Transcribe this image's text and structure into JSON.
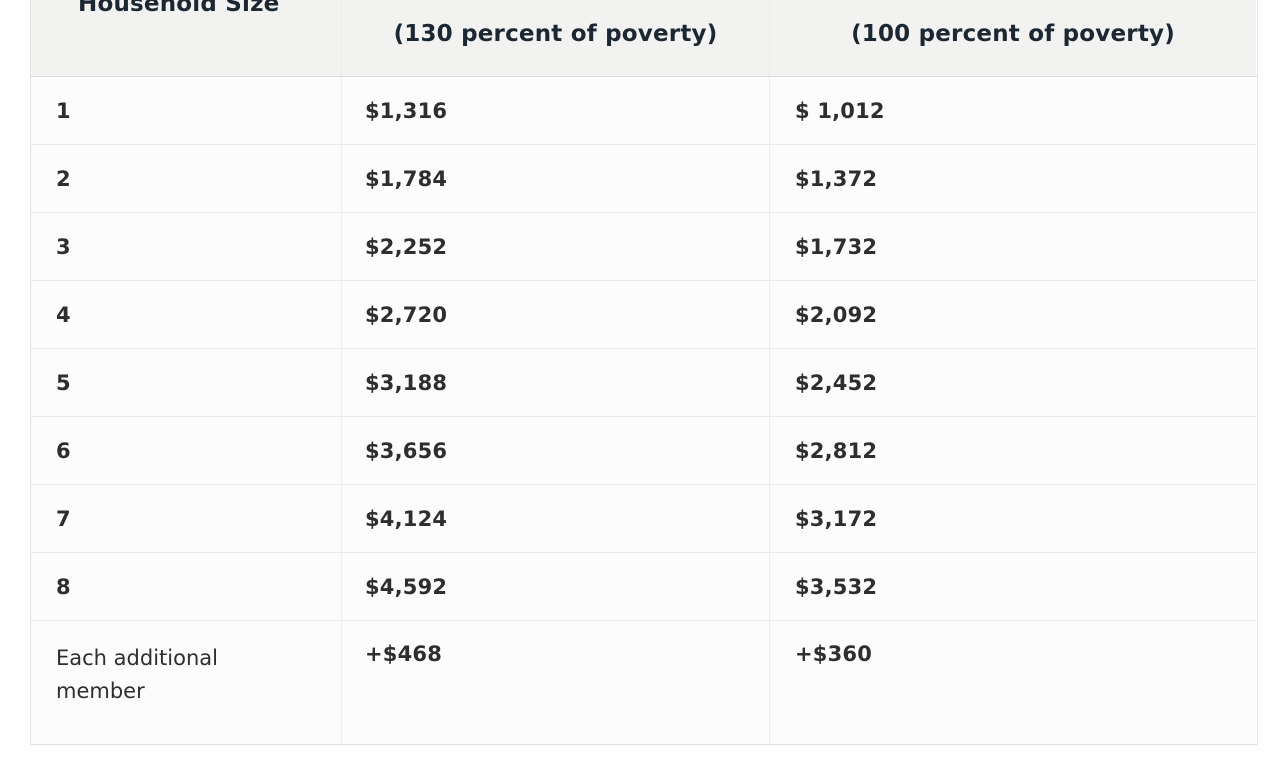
{
  "table": {
    "headers": {
      "household_size": "Household Size",
      "pct130": "(130 percent of poverty)",
      "pct100": "(100 percent of poverty)"
    },
    "rows": [
      {
        "size": "1",
        "pct130": "$1,316",
        "pct100": "$ 1,012"
      },
      {
        "size": "2",
        "pct130": "$1,784",
        "pct100": "$1,372"
      },
      {
        "size": "3",
        "pct130": "$2,252",
        "pct100": "$1,732"
      },
      {
        "size": "4",
        "pct130": "$2,720",
        "pct100": "$2,092"
      },
      {
        "size": "5",
        "pct130": "$3,188",
        "pct100": "$2,452"
      },
      {
        "size": "6",
        "pct130": "$3,656",
        "pct100": "$2,812"
      },
      {
        "size": "7",
        "pct130": "$4,124",
        "pct100": "$3,172"
      },
      {
        "size": "8",
        "pct130": "$4,592",
        "pct100": "$3,532"
      },
      {
        "size": "Each additional member",
        "pct130": "+$468",
        "pct100": "+$360"
      }
    ],
    "colors": {
      "header_bg": "#f2f2f1",
      "header_text": "#1b2733",
      "body_text": "#2e2e2e",
      "row_bg": "#fcfcfc",
      "border": "#e9e9e9"
    }
  }
}
